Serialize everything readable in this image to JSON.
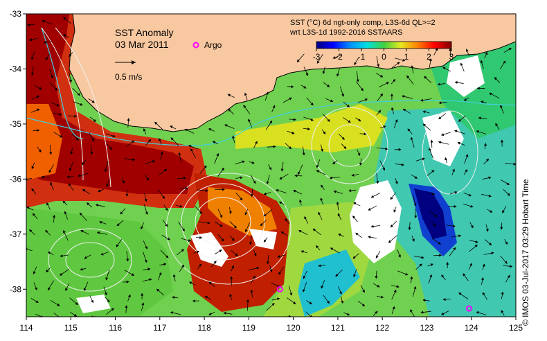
{
  "title": "SST Anomaly",
  "date": "03 Mar 2011",
  "argo_label": "Argo",
  "vector_scale_label": "0.5 m/s",
  "colorbar": {
    "title_line1": "SST (°C) 6d ngt-only comp, L3S-6d QL>=2",
    "title_line2": "wrt L3S-1d 1992-2016 SSTAARS",
    "ticks": [
      "-3",
      "-2",
      "-1",
      "0",
      "1",
      "2",
      "3"
    ],
    "values": [
      -3,
      -2,
      -1,
      0,
      1,
      2,
      3
    ],
    "colors": [
      "#000080",
      "#0000ff",
      "#0090ff",
      "#00e0e0",
      "#40d040",
      "#e8e820",
      "#ff8000",
      "#ff0000",
      "#800000"
    ]
  },
  "axes": {
    "x_ticks": [
      "114",
      "115",
      "116",
      "117",
      "118",
      "119",
      "120",
      "121",
      "122",
      "123",
      "124",
      "125"
    ],
    "x_values": [
      114,
      115,
      116,
      117,
      118,
      119,
      120,
      121,
      122,
      123,
      124,
      125
    ],
    "y_ticks": [
      "-33",
      "-34",
      "-35",
      "-36",
      "-37",
      "-38"
    ],
    "y_values": [
      -33,
      -34,
      -35,
      -36,
      -37,
      -38
    ],
    "lon_range": [
      114,
      125
    ],
    "lat_range": [
      -38.5,
      -33
    ]
  },
  "argo_floats": [
    {
      "lon": 119.7,
      "lat": -38.0
    },
    {
      "lon": 123.95,
      "lat": -38.35
    }
  ],
  "credit": "© IMOS 03-Jul-2017 03:29 Hobart Time",
  "land_color": "#f8c8a0",
  "argo_color": "#ff00ff"
}
